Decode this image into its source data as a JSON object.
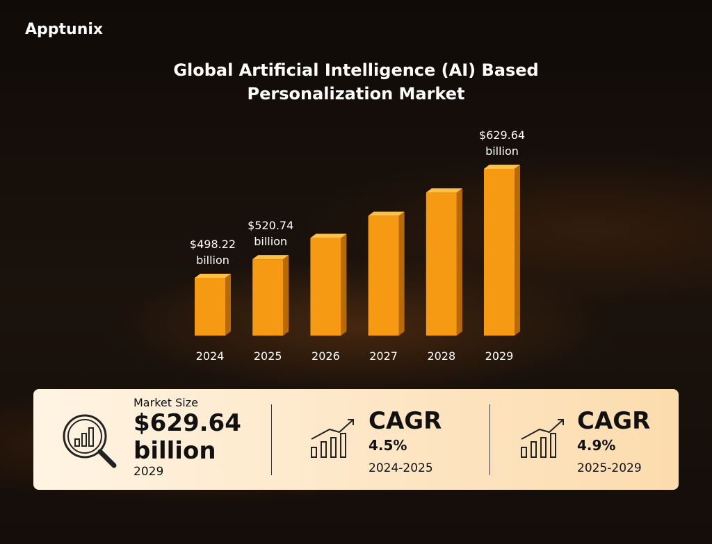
{
  "brand": "Apptunix",
  "chart_data": {
    "type": "bar",
    "title": "Global Artificial Intelligence (AI) Based Personalization Market",
    "categories": [
      "2024",
      "2025",
      "2026",
      "2027",
      "2028",
      "2029"
    ],
    "values": [
      498.22,
      520.74,
      546.3,
      573.0,
      601.1,
      629.64
    ],
    "value_labels": [
      "$498.22 billion",
      "$520.74 billion",
      null,
      null,
      null,
      "$629.64 billion"
    ],
    "color": "#f59a12"
  },
  "stats": [
    {
      "label": "Market Size",
      "value": "$629.64 billion",
      "period": "2029"
    },
    {
      "label": "CAGR",
      "value": "4.5%",
      "period": "2024-2025"
    },
    {
      "label": "CAGR",
      "value": "4.9%",
      "period": "2025-2029"
    }
  ]
}
